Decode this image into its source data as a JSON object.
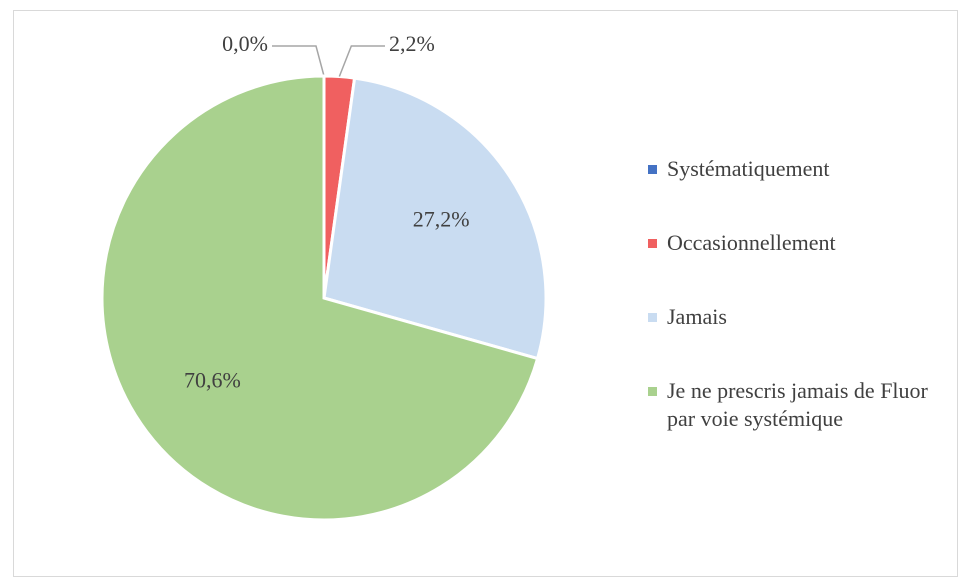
{
  "chart_data": {
    "type": "pie",
    "categories": [
      "Systématiquement",
      "Occasionnellement",
      "Jamais",
      "Je ne prescris jamais de Fluor par voie systémique"
    ],
    "values": [
      0.0,
      2.2,
      27.2,
      70.6
    ],
    "value_labels": [
      "0,0%",
      "2,2%",
      "27,2%",
      "70,6%"
    ],
    "colors": [
      "#4472c4",
      "#f06060",
      "#c9dcf1",
      "#a9d18e"
    ],
    "legend": "right"
  }
}
